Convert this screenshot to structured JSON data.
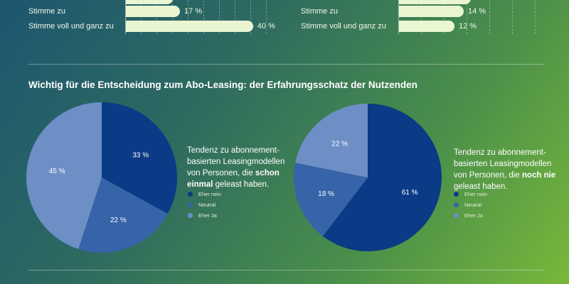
{
  "chart_data": [
    {
      "type": "bar",
      "orientation": "horizontal",
      "categories": [
        "Stimme zu",
        "Stimme voll und ganz zu"
      ],
      "values": [
        17,
        40
      ],
      "unit": "%",
      "value_labels": [
        "17 %",
        "40 %"
      ]
    },
    {
      "type": "bar",
      "orientation": "horizontal",
      "categories": [
        "Stimme zu",
        "Stimme voll und ganz zu"
      ],
      "values": [
        14,
        12
      ],
      "unit": "%",
      "value_labels": [
        "14 %",
        "12 %"
      ]
    },
    {
      "type": "pie",
      "title": "Wichtig für die Entscheidung zum Abo-Leasing: der Erfahrungsschatz der Nutzenden",
      "labels": [
        "Eher nein",
        "Neutral",
        "Eher Ja"
      ],
      "values": [
        33,
        22,
        45
      ],
      "value_labels": [
        "33 %",
        "22 %",
        "45 %"
      ],
      "colors": [
        "#0b3a86",
        "#3764a8",
        "#6d8fc6"
      ]
    },
    {
      "type": "pie",
      "labels": [
        "Eher nein",
        "Neutral",
        "Eher Ja"
      ],
      "values": [
        61,
        18,
        22
      ],
      "value_labels": [
        "61 %",
        "18 %",
        "22 %"
      ],
      "colors": [
        "#0b3a86",
        "#3764a8",
        "#6d8fc6"
      ]
    }
  ],
  "section_title": "Wichtig für die Entscheidung zum Abo-Leasing: der Erfahrungsschatz der Nutzenden",
  "desc1": {
    "pre": "Tendenz zu abonnement-basierten Leasingmodellen von Personen, die ",
    "bold": "schon einmal",
    "post": " geleast haben."
  },
  "desc2": {
    "pre": "Tendenz zu abonnement-basierten Leasingmodellen von Personen, die ",
    "bold": "noch nie",
    "post": " geleast haben."
  },
  "legend": [
    "Eher nein",
    "Neutral",
    "Eher Ja"
  ]
}
